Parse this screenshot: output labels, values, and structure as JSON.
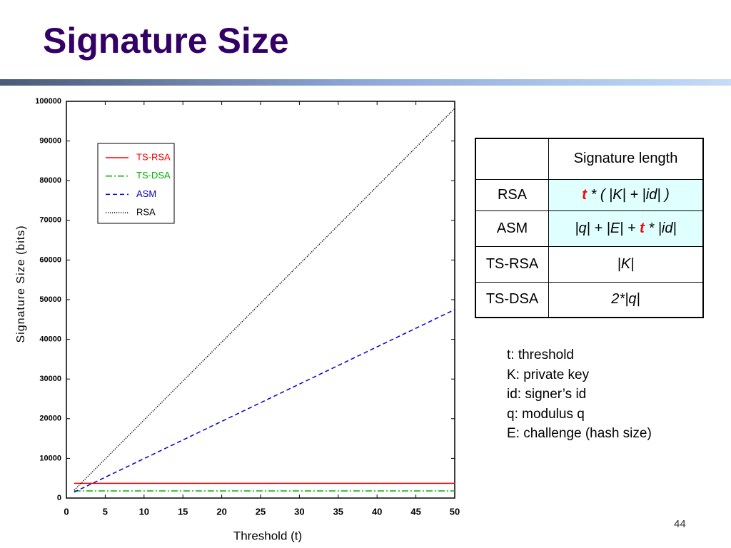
{
  "title": "Signature Size",
  "chart_data": {
    "type": "line",
    "xlabel": "Threshold (t)",
    "ylabel": "Signature Size (bits)",
    "x": [
      1,
      50
    ],
    "series": [
      {
        "name": "TS-RSA",
        "color": "#ff0000",
        "dash": "solid",
        "values": [
          3700,
          3700
        ]
      },
      {
        "name": "TS-DSA",
        "color": "#00b000",
        "dash": "dashdot",
        "values": [
          1800,
          1800
        ]
      },
      {
        "name": "ASM",
        "color": "#0000cc",
        "dash": "dashed",
        "values": [
          1500,
          47500
        ]
      },
      {
        "name": "RSA",
        "color": "#000000",
        "dash": "dotted",
        "values": [
          2000,
          98200
        ]
      }
    ],
    "xlim": [
      0,
      50
    ],
    "xticks": [
      0,
      5,
      10,
      15,
      20,
      25,
      30,
      35,
      40,
      45,
      50
    ],
    "ylim": [
      0,
      100000
    ],
    "yticks": [
      0,
      10000,
      20000,
      30000,
      40000,
      50000,
      60000,
      70000,
      80000,
      90000,
      100000
    ],
    "legend": "upper left"
  },
  "table": {
    "column": "Signature length",
    "rows": [
      {
        "label": "RSA",
        "fill": "#e0ffff",
        "formula": [
          {
            "text": "t",
            "color": "#ff0000"
          },
          {
            "text": " * ( |K| + |id| )"
          }
        ]
      },
      {
        "label": "ASM",
        "fill": "#e0ffff",
        "formula": [
          {
            "text": "|q| + |E| + "
          },
          {
            "text": "t",
            "color": "#ff0000"
          },
          {
            "text": " * |id|"
          }
        ]
      },
      {
        "label": "TS-RSA",
        "formula": [
          {
            "text": "|K|"
          }
        ]
      },
      {
        "label": "TS-DSA",
        "formula": [
          {
            "text": "2*|q|"
          }
        ]
      }
    ]
  },
  "notes": [
    "t: threshold",
    "K: private key",
    "id: signer’s id",
    "q: modulus q",
    "E: challenge (hash size)"
  ],
  "page_number": "44"
}
